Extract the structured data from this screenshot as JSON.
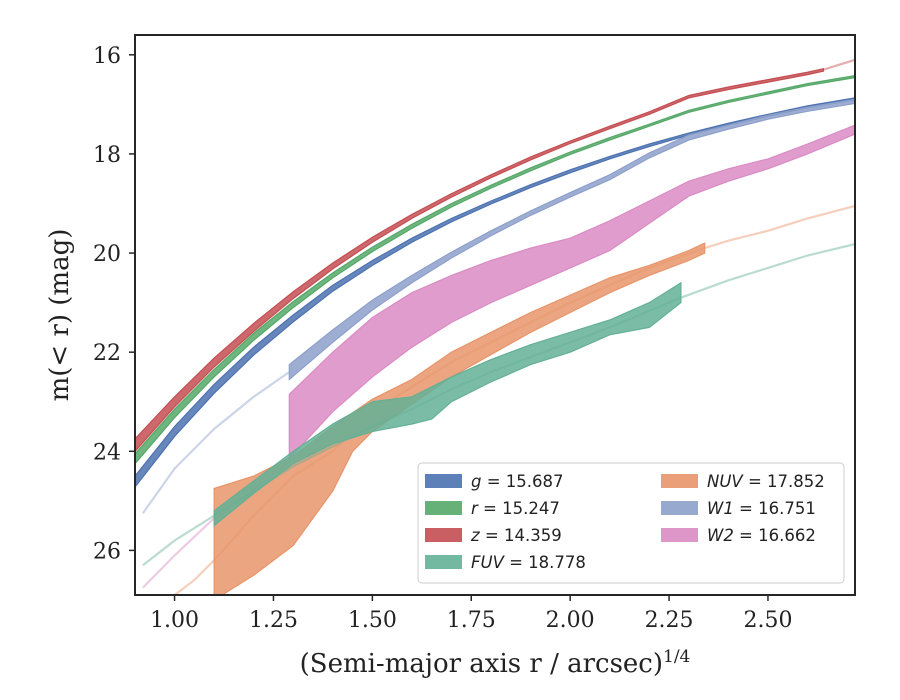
{
  "chart_data": {
    "type": "area",
    "xlabel": "(Semi-major axis r / arcsec)",
    "xlabel_sup": "1/4",
    "ylabel": "m(< r) (mag)",
    "xlim": [
      0.9,
      2.72
    ],
    "ylim": [
      26.9,
      15.6
    ],
    "y_inverted": true,
    "xticks": [
      1.0,
      1.25,
      1.5,
      1.75,
      2.0,
      2.25,
      2.5
    ],
    "xtick_labels": [
      "1.00",
      "1.25",
      "1.50",
      "1.75",
      "2.00",
      "2.25",
      "2.50"
    ],
    "yticks": [
      16,
      18,
      20,
      22,
      24,
      26
    ],
    "ytick_labels": [
      "16",
      "18",
      "20",
      "22",
      "24",
      "26"
    ],
    "grid": false,
    "legend_position": "lower-right",
    "series": [
      {
        "name": "g = 15.687",
        "legend_var": "g",
        "legend_val": "15.687",
        "color": "#4c72b0",
        "upper": [
          [
            0.9,
            24.5
          ],
          [
            1.0,
            23.5
          ],
          [
            1.1,
            22.65
          ],
          [
            1.2,
            21.9
          ],
          [
            1.3,
            21.25
          ],
          [
            1.4,
            20.65
          ],
          [
            1.5,
            20.15
          ],
          [
            1.6,
            19.7
          ],
          [
            1.7,
            19.3
          ],
          [
            1.8,
            18.95
          ],
          [
            1.9,
            18.62
          ],
          [
            2.0,
            18.32
          ],
          [
            2.1,
            18.05
          ],
          [
            2.2,
            17.8
          ],
          [
            2.3,
            17.58
          ],
          [
            2.4,
            17.38
          ],
          [
            2.5,
            17.2
          ],
          [
            2.6,
            17.03
          ],
          [
            2.72,
            16.87
          ]
        ],
        "lower": [
          [
            0.9,
            24.72
          ],
          [
            1.0,
            23.7
          ],
          [
            1.1,
            22.83
          ],
          [
            1.2,
            22.06
          ],
          [
            1.3,
            21.39
          ],
          [
            1.4,
            20.77
          ],
          [
            1.5,
            20.25
          ],
          [
            1.6,
            19.78
          ],
          [
            1.7,
            19.37
          ],
          [
            1.8,
            19.01
          ],
          [
            1.9,
            18.68
          ],
          [
            2.0,
            18.38
          ],
          [
            2.1,
            18.1
          ],
          [
            2.2,
            17.85
          ],
          [
            2.3,
            17.62
          ],
          [
            2.4,
            17.42
          ],
          [
            2.5,
            17.24
          ],
          [
            2.6,
            17.07
          ],
          [
            2.72,
            16.91
          ]
        ],
        "ext": []
      },
      {
        "name": "r = 15.247",
        "legend_var": "r",
        "legend_val": "15.247",
        "color": "#55a868",
        "upper": [
          [
            0.9,
            24.05
          ],
          [
            1.0,
            23.15
          ],
          [
            1.1,
            22.35
          ],
          [
            1.2,
            21.62
          ],
          [
            1.3,
            20.98
          ],
          [
            1.4,
            20.4
          ],
          [
            1.5,
            19.88
          ],
          [
            1.6,
            19.42
          ],
          [
            1.7,
            19.0
          ],
          [
            1.8,
            18.63
          ],
          [
            1.9,
            18.28
          ],
          [
            2.0,
            17.96
          ],
          [
            2.1,
            17.67
          ],
          [
            2.2,
            17.4
          ],
          [
            2.3,
            17.12
          ],
          [
            2.4,
            16.92
          ],
          [
            2.5,
            16.75
          ],
          [
            2.6,
            16.58
          ],
          [
            2.72,
            16.42
          ]
        ],
        "lower": [
          [
            0.9,
            24.25
          ],
          [
            1.0,
            23.32
          ],
          [
            1.1,
            22.5
          ],
          [
            1.2,
            21.76
          ],
          [
            1.3,
            21.1
          ],
          [
            1.4,
            20.5
          ],
          [
            1.5,
            19.97
          ],
          [
            1.6,
            19.5
          ],
          [
            1.7,
            19.07
          ],
          [
            1.8,
            18.69
          ],
          [
            1.9,
            18.34
          ],
          [
            2.0,
            18.01
          ],
          [
            2.1,
            17.72
          ],
          [
            2.2,
            17.44
          ],
          [
            2.3,
            17.16
          ],
          [
            2.4,
            16.96
          ],
          [
            2.5,
            16.79
          ],
          [
            2.6,
            16.62
          ],
          [
            2.72,
            16.46
          ]
        ],
        "ext": []
      },
      {
        "name": "z = 14.359",
        "legend_var": "z",
        "legend_val": "14.359",
        "color": "#c44e52",
        "upper": [
          [
            0.9,
            23.75
          ],
          [
            1.0,
            22.9
          ],
          [
            1.1,
            22.12
          ],
          [
            1.2,
            21.42
          ],
          [
            1.3,
            20.78
          ],
          [
            1.4,
            20.2
          ],
          [
            1.5,
            19.68
          ],
          [
            1.6,
            19.22
          ],
          [
            1.7,
            18.8
          ],
          [
            1.8,
            18.42
          ],
          [
            1.9,
            18.06
          ],
          [
            2.0,
            17.74
          ],
          [
            2.1,
            17.44
          ],
          [
            2.2,
            17.15
          ],
          [
            2.3,
            16.82
          ],
          [
            2.4,
            16.65
          ],
          [
            2.5,
            16.5
          ],
          [
            2.6,
            16.35
          ],
          [
            2.64,
            16.28
          ]
        ],
        "lower": [
          [
            0.9,
            24.0
          ],
          [
            1.0,
            23.1
          ],
          [
            1.1,
            22.3
          ],
          [
            1.2,
            21.58
          ],
          [
            1.3,
            20.92
          ],
          [
            1.4,
            20.32
          ],
          [
            1.5,
            19.78
          ],
          [
            1.6,
            19.3
          ],
          [
            1.7,
            18.87
          ],
          [
            1.8,
            18.48
          ],
          [
            1.9,
            18.12
          ],
          [
            2.0,
            17.79
          ],
          [
            2.1,
            17.49
          ],
          [
            2.2,
            17.2
          ],
          [
            2.3,
            16.87
          ],
          [
            2.4,
            16.7
          ],
          [
            2.5,
            16.55
          ],
          [
            2.6,
            16.4
          ],
          [
            2.64,
            16.33
          ]
        ],
        "ext": [
          [
            2.64,
            16.3
          ],
          [
            2.72,
            16.1
          ]
        ]
      },
      {
        "name": "W1 = 16.751",
        "legend_var": "W1",
        "legend_val": "16.751",
        "color": "#8da0cb",
        "upper": [
          [
            1.29,
            22.25
          ],
          [
            1.4,
            21.55
          ],
          [
            1.5,
            20.95
          ],
          [
            1.6,
            20.45
          ],
          [
            1.7,
            19.98
          ],
          [
            1.8,
            19.55
          ],
          [
            1.9,
            19.15
          ],
          [
            2.0,
            18.78
          ],
          [
            2.1,
            18.42
          ],
          [
            2.2,
            17.98
          ],
          [
            2.3,
            17.62
          ],
          [
            2.4,
            17.42
          ],
          [
            2.5,
            17.22
          ],
          [
            2.6,
            17.06
          ],
          [
            2.72,
            16.9
          ]
        ],
        "lower": [
          [
            1.29,
            22.55
          ],
          [
            1.4,
            21.8
          ],
          [
            1.5,
            21.15
          ],
          [
            1.6,
            20.6
          ],
          [
            1.7,
            20.1
          ],
          [
            1.8,
            19.65
          ],
          [
            1.9,
            19.24
          ],
          [
            2.0,
            18.87
          ],
          [
            2.1,
            18.52
          ],
          [
            2.2,
            18.08
          ],
          [
            2.3,
            17.72
          ],
          [
            2.4,
            17.5
          ],
          [
            2.5,
            17.3
          ],
          [
            2.6,
            17.14
          ],
          [
            2.72,
            16.98
          ]
        ],
        "ext": [
          [
            0.92,
            25.25
          ],
          [
            1.0,
            24.35
          ],
          [
            1.1,
            23.55
          ],
          [
            1.2,
            22.9
          ],
          [
            1.29,
            22.4
          ]
        ]
      },
      {
        "name": "W2 = 16.662",
        "legend_var": "W2",
        "legend_val": "16.662",
        "color": "#da8bc3",
        "upper": [
          [
            1.29,
            22.85
          ],
          [
            1.4,
            22.0
          ],
          [
            1.5,
            21.3
          ],
          [
            1.6,
            20.8
          ],
          [
            1.7,
            20.45
          ],
          [
            1.8,
            20.15
          ],
          [
            1.9,
            19.9
          ],
          [
            2.0,
            19.7
          ],
          [
            2.1,
            19.35
          ],
          [
            2.2,
            18.95
          ],
          [
            2.3,
            18.55
          ],
          [
            2.4,
            18.3
          ],
          [
            2.5,
            18.1
          ],
          [
            2.6,
            17.8
          ],
          [
            2.72,
            17.42
          ]
        ],
        "lower": [
          [
            1.29,
            24.15
          ],
          [
            1.4,
            23.2
          ],
          [
            1.5,
            22.5
          ],
          [
            1.6,
            21.9
          ],
          [
            1.7,
            21.4
          ],
          [
            1.8,
            21.0
          ],
          [
            1.9,
            20.65
          ],
          [
            2.0,
            20.3
          ],
          [
            2.1,
            19.95
          ],
          [
            2.2,
            19.4
          ],
          [
            2.3,
            18.85
          ],
          [
            2.4,
            18.55
          ],
          [
            2.5,
            18.3
          ],
          [
            2.6,
            18.0
          ],
          [
            2.72,
            17.6
          ]
        ],
        "ext": [
          [
            0.92,
            26.75
          ],
          [
            1.0,
            26.1
          ],
          [
            1.1,
            25.35
          ],
          [
            1.2,
            24.75
          ],
          [
            1.29,
            24.2
          ]
        ]
      },
      {
        "name": "NUV = 17.852",
        "legend_var": "NUV",
        "legend_val": "17.852",
        "color": "#e8956a",
        "upper": [
          [
            1.1,
            24.75
          ],
          [
            1.2,
            24.5
          ],
          [
            1.3,
            24.1
          ],
          [
            1.4,
            23.5
          ],
          [
            1.5,
            22.95
          ],
          [
            1.6,
            22.55
          ],
          [
            1.7,
            22.0
          ],
          [
            1.8,
            21.6
          ],
          [
            1.9,
            21.2
          ],
          [
            2.0,
            20.85
          ],
          [
            2.1,
            20.5
          ],
          [
            2.2,
            20.25
          ],
          [
            2.3,
            19.95
          ],
          [
            2.34,
            19.8
          ]
        ],
        "lower": [
          [
            1.1,
            27.0
          ],
          [
            1.2,
            26.5
          ],
          [
            1.3,
            25.9
          ],
          [
            1.4,
            24.8
          ],
          [
            1.45,
            24.0
          ],
          [
            1.5,
            23.6
          ],
          [
            1.6,
            23.05
          ],
          [
            1.7,
            22.5
          ],
          [
            1.8,
            22.05
          ],
          [
            1.9,
            21.6
          ],
          [
            2.0,
            21.2
          ],
          [
            2.1,
            20.8
          ],
          [
            2.2,
            20.45
          ],
          [
            2.3,
            20.15
          ],
          [
            2.34,
            20.0
          ]
        ],
        "ext": [
          [
            1.0,
            26.9
          ],
          [
            1.05,
            26.6
          ],
          [
            1.1,
            26.2
          ],
          [
            1.2,
            25.3
          ],
          [
            1.3,
            24.5
          ],
          [
            1.4,
            24.0
          ],
          [
            1.5,
            23.2
          ],
          [
            1.6,
            22.7
          ],
          [
            1.7,
            22.2
          ],
          [
            1.8,
            21.8
          ],
          [
            1.9,
            21.4
          ],
          [
            2.0,
            21.0
          ],
          [
            2.1,
            20.65
          ],
          [
            2.2,
            20.3
          ],
          [
            2.34,
            19.9
          ],
          [
            2.4,
            19.75
          ],
          [
            2.5,
            19.55
          ],
          [
            2.6,
            19.3
          ],
          [
            2.72,
            19.05
          ]
        ]
      },
      {
        "name": "FUV = 18.778",
        "legend_var": "FUV",
        "legend_val": "18.778",
        "color": "#64b096",
        "upper": [
          [
            1.1,
            25.2
          ],
          [
            1.2,
            24.6
          ],
          [
            1.3,
            24.0
          ],
          [
            1.4,
            23.45
          ],
          [
            1.5,
            23.0
          ],
          [
            1.6,
            22.9
          ],
          [
            1.7,
            22.5
          ],
          [
            1.8,
            22.15
          ],
          [
            1.9,
            21.85
          ],
          [
            2.0,
            21.6
          ],
          [
            2.1,
            21.35
          ],
          [
            2.2,
            21.0
          ],
          [
            2.28,
            20.6
          ]
        ],
        "lower": [
          [
            1.1,
            25.5
          ],
          [
            1.2,
            24.85
          ],
          [
            1.3,
            24.25
          ],
          [
            1.4,
            23.85
          ],
          [
            1.5,
            23.6
          ],
          [
            1.6,
            23.45
          ],
          [
            1.65,
            23.35
          ],
          [
            1.7,
            23.0
          ],
          [
            1.8,
            22.6
          ],
          [
            1.9,
            22.25
          ],
          [
            2.0,
            22.0
          ],
          [
            2.1,
            21.65
          ],
          [
            2.2,
            21.5
          ],
          [
            2.28,
            21.0
          ]
        ],
        "ext": [
          [
            0.92,
            26.3
          ],
          [
            1.0,
            25.8
          ],
          [
            1.1,
            25.3
          ],
          [
            1.2,
            24.8
          ],
          [
            1.3,
            24.3
          ],
          [
            1.4,
            23.9
          ],
          [
            1.5,
            23.5
          ],
          [
            1.6,
            23.15
          ],
          [
            1.7,
            22.75
          ],
          [
            1.8,
            22.4
          ],
          [
            1.9,
            22.1
          ],
          [
            2.0,
            21.8
          ],
          [
            2.1,
            21.5
          ],
          [
            2.28,
            20.9
          ],
          [
            2.4,
            20.55
          ],
          [
            2.5,
            20.3
          ],
          [
            2.6,
            20.05
          ],
          [
            2.72,
            19.82
          ]
        ]
      }
    ],
    "legend_layout": [
      [
        "g = 15.687",
        "r = 15.247",
        "z = 14.359",
        "FUV = 18.778"
      ],
      [
        "NUV = 17.852",
        "W1 = 16.751",
        "W2 = 16.662"
      ]
    ]
  }
}
